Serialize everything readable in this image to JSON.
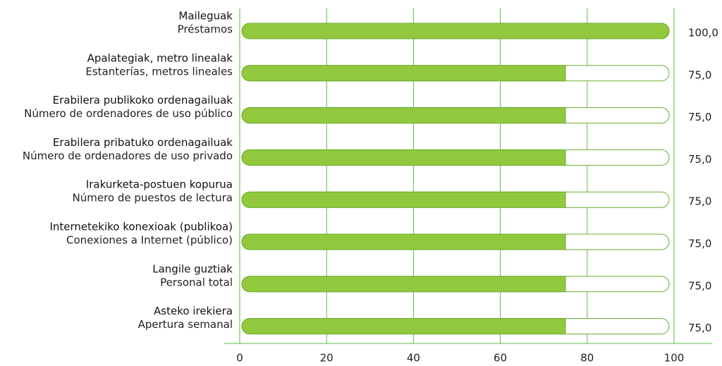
{
  "chart_data": {
    "type": "bar",
    "orientation": "horizontal",
    "categories": [
      [
        "Maileguak",
        "Préstamos"
      ],
      [
        "Apalategiak, metro linealak",
        "Estanterías, metros lineales"
      ],
      [
        "Erabilera publikoko ordenagailuak",
        "Número de ordenadores de uso público"
      ],
      [
        "Erabilera pribatuko ordenagailuak",
        "Número de ordenadores de uso privado"
      ],
      [
        "Irakurketa-postuen kopurua",
        "Número de puestos de lectura"
      ],
      [
        "Internetekiko konexioak (publikoa)",
        "Conexiones a Internet (público)"
      ],
      [
        "Langile guztiak",
        "Personal total"
      ],
      [
        "Asteko irekiera",
        "Apertura semanal"
      ]
    ],
    "values": [
      100,
      75,
      75,
      75,
      75,
      75,
      75,
      75
    ],
    "value_labels": [
      "100,0",
      "75,0",
      "75,0",
      "75,0",
      "75,0",
      "75,0",
      "75,0",
      "75,0"
    ],
    "color": "#92c83e",
    "xlim": [
      0,
      100
    ],
    "xticks": [
      0,
      20,
      40,
      60,
      80,
      100
    ],
    "grid": true
  }
}
